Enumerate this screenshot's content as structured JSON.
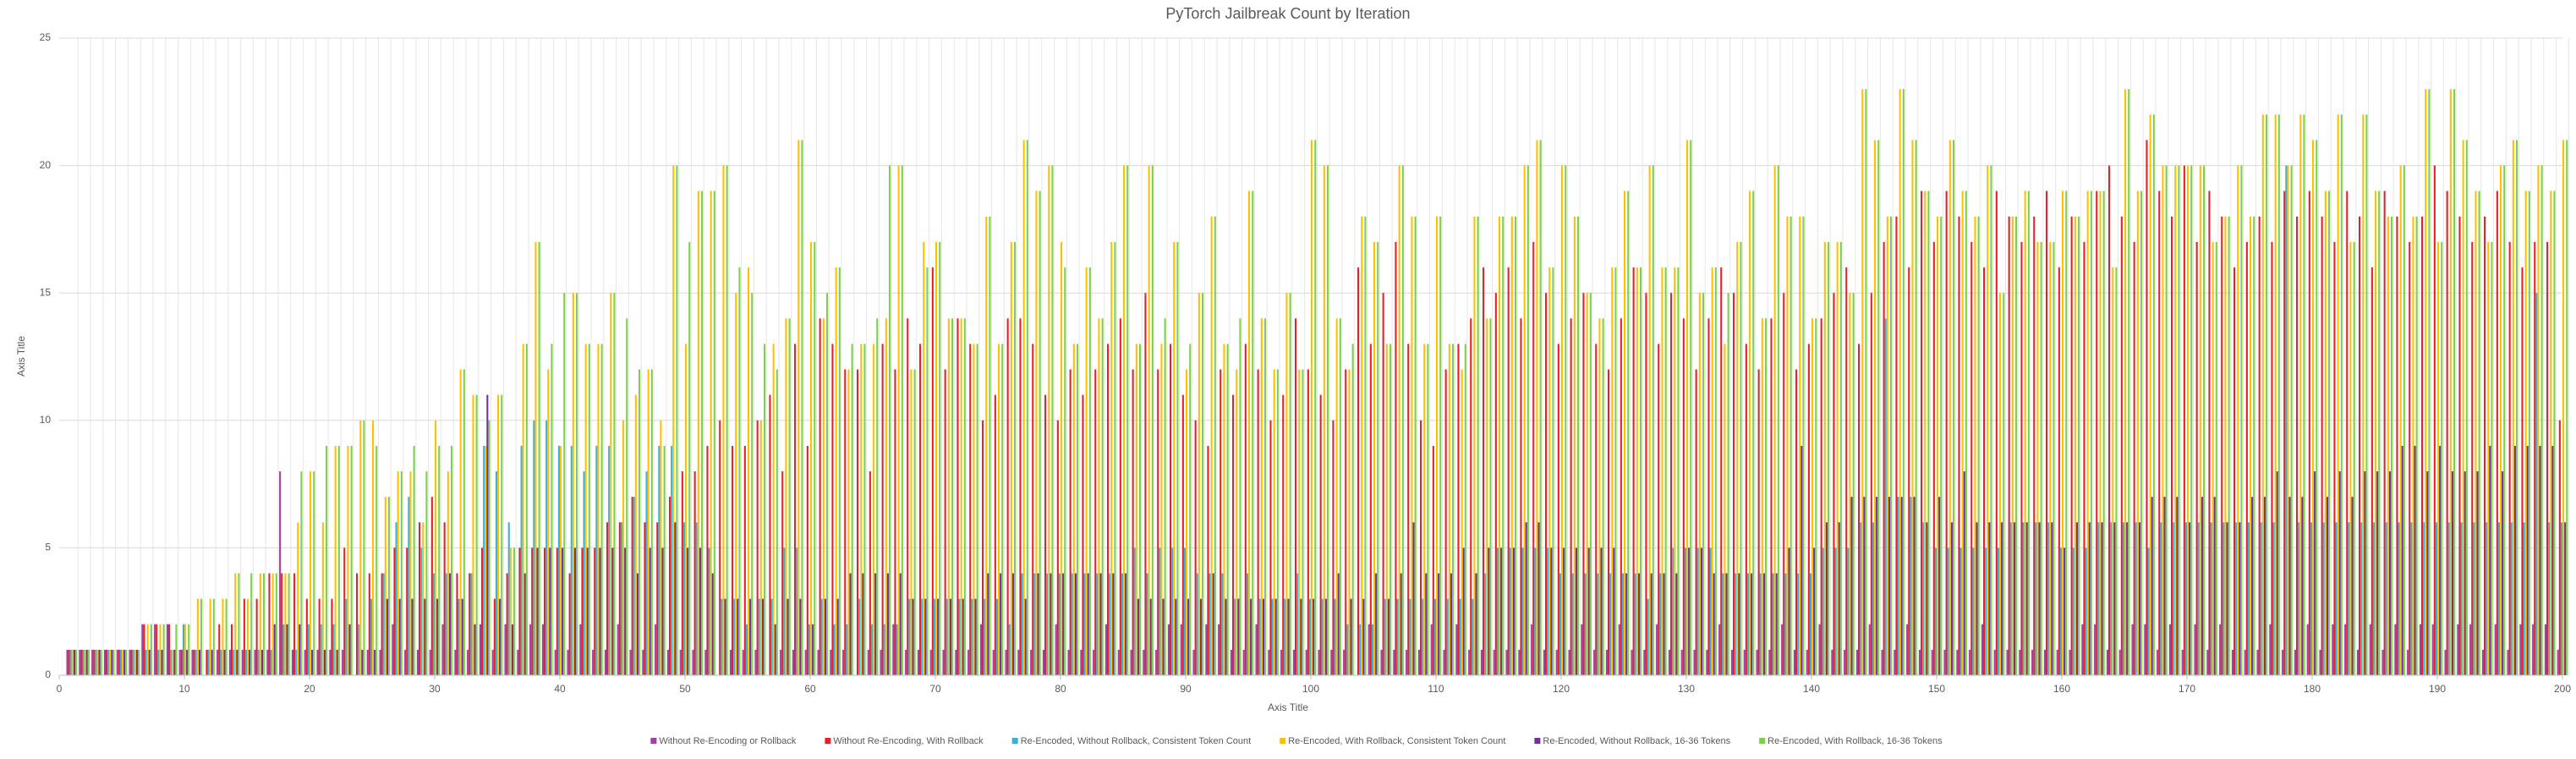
{
  "chart_data": {
    "type": "bar",
    "title": "PyTorch Jailbreak Count by Iteration",
    "x_label": "Axis Title",
    "y_label": "Axis Title",
    "x": [
      1,
      2,
      3,
      4,
      5,
      6,
      7,
      8,
      9,
      10,
      11,
      12,
      13,
      14,
      15,
      16,
      17,
      18,
      19,
      20,
      21,
      22,
      23,
      24,
      25,
      26,
      27,
      28,
      29,
      30,
      31,
      32,
      33,
      34,
      35,
      36,
      37,
      38,
      39,
      40,
      41,
      42,
      43,
      44,
      45,
      46,
      47,
      48,
      49,
      50,
      51,
      52,
      53,
      54,
      55,
      56,
      57,
      58,
      59,
      60,
      61,
      62,
      63,
      64,
      65,
      66,
      67,
      68,
      69,
      70,
      71,
      72,
      73,
      74,
      75,
      76,
      77,
      78,
      79,
      80,
      81,
      82,
      83,
      84,
      85,
      86,
      87,
      88,
      89,
      90,
      91,
      92,
      93,
      94,
      95,
      96,
      97,
      98,
      99,
      100,
      101,
      102,
      103,
      104,
      105,
      106,
      107,
      108,
      109,
      110,
      111,
      112,
      113,
      114,
      115,
      116,
      117,
      118,
      119,
      120,
      121,
      122,
      123,
      124,
      125,
      126,
      127,
      128,
      129,
      130,
      131,
      132,
      133,
      134,
      135,
      136,
      137,
      138,
      139,
      140,
      141,
      142,
      143,
      144,
      145,
      146,
      147,
      148,
      149,
      150,
      151,
      152,
      153,
      154,
      155,
      156,
      157,
      158,
      159,
      160,
      161,
      162,
      163,
      164,
      165,
      166,
      167,
      168,
      169,
      170,
      171,
      172,
      173,
      174,
      175,
      176,
      177,
      178,
      179,
      180,
      181,
      182,
      183,
      184,
      185,
      186,
      187,
      188,
      189,
      190,
      191,
      192,
      193,
      194,
      195,
      196,
      197,
      198,
      199,
      200
    ],
    "xlim": [
      0,
      200
    ],
    "xticks": [
      0,
      10,
      20,
      30,
      40,
      50,
      60,
      70,
      80,
      90,
      100,
      110,
      120,
      130,
      140,
      150,
      160,
      170,
      180,
      190,
      200
    ],
    "ylim": [
      0,
      25
    ],
    "yticks": [
      0,
      5,
      10,
      15,
      20,
      25
    ],
    "grid": true,
    "legend": "bottom",
    "series": [
      {
        "name": "Without Re-Encoding or Rollback",
        "color": "#a0409f",
        "values": [
          1,
          1,
          1,
          1,
          1,
          1,
          2,
          2,
          2,
          1,
          1,
          0,
          1,
          1,
          1,
          1,
          1,
          8,
          1,
          1,
          1,
          1,
          1,
          0,
          1,
          1,
          2,
          1,
          1,
          1,
          2,
          1,
          1,
          2,
          1,
          2,
          1,
          2,
          2,
          1,
          1,
          2,
          1,
          1,
          2,
          1,
          1,
          2,
          1,
          1,
          1,
          1,
          0,
          1,
          1,
          1,
          0,
          1,
          1,
          1,
          1,
          1,
          1,
          0,
          1,
          1,
          2,
          1,
          1,
          1,
          1,
          1,
          1,
          2,
          1,
          1,
          1,
          1,
          1,
          2,
          1,
          1,
          1,
          2,
          1,
          1,
          1,
          1,
          2,
          2,
          1,
          2,
          2,
          1,
          1,
          2,
          1,
          1,
          1,
          1,
          1,
          1,
          1,
          0,
          2,
          1,
          1,
          1,
          1,
          2,
          1,
          2,
          1,
          1,
          1,
          1,
          1,
          2,
          1,
          1,
          1,
          2,
          1,
          1,
          2,
          1,
          1,
          2,
          1,
          1,
          1,
          1,
          2,
          1,
          1,
          1,
          1,
          2,
          1,
          1,
          2,
          1,
          1,
          1,
          2,
          1,
          1,
          2,
          1,
          1,
          1,
          1,
          1,
          2,
          1,
          1,
          1,
          1,
          1,
          1,
          1,
          2,
          2,
          1,
          1,
          2,
          2,
          1,
          2,
          1,
          2,
          1,
          2,
          1,
          1,
          1,
          2,
          1,
          1,
          2,
          1,
          2,
          2,
          1,
          2,
          1,
          2,
          1,
          2,
          2,
          1,
          2,
          2,
          1,
          2,
          1,
          2,
          2,
          2,
          1
        ]
      },
      {
        "name": "Without Re-Encoding, With Rollback",
        "color": "#e8202a",
        "values": [
          1,
          1,
          1,
          1,
          1,
          1,
          2,
          2,
          2,
          1,
          1,
          1,
          2,
          2,
          3,
          3,
          4,
          4,
          4,
          3,
          3,
          3,
          5,
          4,
          4,
          4,
          5,
          5,
          6,
          7,
          6,
          4,
          4,
          5,
          3,
          4,
          5,
          5,
          5,
          5,
          4,
          5,
          5,
          6,
          6,
          7,
          6,
          6,
          7,
          8,
          8,
          9,
          10,
          9,
          9,
          10,
          11,
          8,
          13,
          9,
          14,
          13,
          12,
          12,
          8,
          13,
          12,
          14,
          13,
          16,
          12,
          14,
          13,
          10,
          11,
          14,
          14,
          13,
          11,
          10,
          12,
          11,
          12,
          13,
          14,
          12,
          15,
          12,
          13,
          11,
          10,
          9,
          12,
          11,
          13,
          12,
          10,
          11,
          14,
          12,
          11,
          10,
          12,
          16,
          13,
          15,
          17,
          13,
          10,
          9,
          12,
          13,
          14,
          16,
          15,
          16,
          14,
          17,
          15,
          13,
          14,
          15,
          13,
          12,
          14,
          16,
          15,
          13,
          15,
          14,
          12,
          14,
          16,
          15,
          13,
          12,
          14,
          15,
          12,
          13,
          14,
          15,
          16,
          13,
          15,
          17,
          18,
          16,
          19,
          17,
          19,
          18,
          17,
          16,
          19,
          18,
          17,
          18,
          19,
          16,
          18,
          17,
          19,
          20,
          18,
          17,
          21,
          19,
          18,
          20,
          17,
          19,
          18,
          16,
          17,
          18,
          17,
          19,
          18,
          19,
          18,
          17,
          19,
          18,
          16,
          19,
          18,
          17,
          18,
          20,
          19,
          18,
          17,
          18,
          19,
          17,
          16,
          17,
          17,
          10
        ]
      },
      {
        "name": "Re-Encoded, Without Rollback, Consistent Token Count",
        "color": "#3ab0e0",
        "values": [
          1,
          1,
          1,
          1,
          1,
          1,
          1,
          1,
          1,
          2,
          1,
          1,
          1,
          1,
          1,
          1,
          1,
          2,
          1,
          2,
          2,
          2,
          3,
          2,
          3,
          4,
          6,
          7,
          5,
          4,
          4,
          3,
          4,
          9,
          8,
          6,
          9,
          10,
          10,
          9,
          9,
          8,
          9,
          9,
          6,
          7,
          8,
          9,
          9,
          6,
          6,
          5,
          3,
          3,
          2,
          3,
          3,
          5,
          5,
          2,
          3,
          2,
          2,
          3,
          2,
          2,
          2,
          3,
          3,
          3,
          3,
          3,
          3,
          3,
          3,
          2,
          4,
          4,
          4,
          4,
          4,
          4,
          4,
          4,
          4,
          5,
          4,
          5,
          5,
          5,
          4,
          4,
          4,
          3,
          4,
          3,
          3,
          3,
          4,
          3,
          3,
          3,
          2,
          2,
          2,
          3,
          3,
          3,
          3,
          3,
          3,
          3,
          3,
          4,
          5,
          5,
          5,
          5,
          5,
          4,
          4,
          4,
          4,
          4,
          4,
          4,
          3,
          4,
          5,
          5,
          5,
          5,
          4,
          4,
          4,
          4,
          4,
          4,
          4,
          4,
          5,
          5,
          5,
          6,
          6,
          14,
          7,
          7,
          6,
          5,
          5,
          5,
          5,
          5,
          5,
          6,
          6,
          6,
          6,
          5,
          5,
          5,
          6,
          6,
          6,
          6,
          5,
          6,
          6,
          6,
          6,
          6,
          6,
          6,
          6,
          6,
          6,
          20,
          6,
          6,
          6,
          6,
          6,
          6,
          6,
          6,
          6,
          6,
          6,
          6,
          6,
          6,
          6,
          6,
          6,
          6,
          6,
          15,
          6,
          6
        ]
      },
      {
        "name": "Re-Encoded, With Rollback, Consistent Token Count",
        "color": "#ffc000",
        "values": [
          1,
          1,
          1,
          1,
          1,
          1,
          2,
          2,
          1,
          2,
          3,
          3,
          3,
          4,
          3,
          4,
          4,
          4,
          6,
          8,
          6,
          9,
          9,
          10,
          10,
          7,
          8,
          8,
          6,
          10,
          8,
          12,
          11,
          9,
          11,
          5,
          13,
          17,
          12,
          9,
          15,
          13,
          13,
          15,
          10,
          11,
          12,
          10,
          20,
          13,
          19,
          19,
          20,
          15,
          16,
          10,
          13,
          14,
          21,
          17,
          14,
          16,
          12,
          13,
          13,
          14,
          20,
          12,
          17,
          17,
          14,
          14,
          13,
          18,
          13,
          17,
          21,
          19,
          20,
          17,
          13,
          16,
          14,
          17,
          20,
          13,
          20,
          13,
          17,
          12,
          15,
          18,
          13,
          12,
          19,
          14,
          12,
          15,
          12,
          21,
          20,
          14,
          12,
          18,
          17,
          13,
          20,
          18,
          13,
          18,
          13,
          12,
          18,
          14,
          18,
          18,
          20,
          21,
          16,
          20,
          18,
          15,
          14,
          16,
          19,
          16,
          20,
          16,
          16,
          21,
          15,
          16,
          13,
          17,
          19,
          14,
          20,
          18,
          18,
          14,
          17,
          17,
          15,
          23,
          21,
          18,
          23,
          21,
          19,
          18,
          21,
          19,
          18,
          20,
          15,
          18,
          19,
          17,
          17,
          19,
          18,
          19,
          19,
          16,
          23,
          19,
          22,
          20,
          20,
          20,
          20,
          17,
          18,
          20,
          18,
          22,
          22,
          20,
          22,
          21,
          19,
          22,
          17,
          22,
          19,
          18,
          20,
          18,
          23,
          17,
          23,
          21,
          19,
          17,
          20,
          21,
          19,
          20,
          19,
          21
        ]
      },
      {
        "name": "Re-Encoded, Without Rollback, 16-36 Tokens",
        "color": "#7030a0",
        "values": [
          1,
          1,
          1,
          1,
          1,
          1,
          1,
          1,
          1,
          1,
          1,
          1,
          1,
          1,
          1,
          1,
          2,
          2,
          2,
          1,
          1,
          1,
          2,
          1,
          1,
          3,
          3,
          3,
          3,
          3,
          4,
          3,
          2,
          11,
          3,
          2,
          4,
          5,
          5,
          5,
          5,
          5,
          5,
          5,
          5,
          4,
          5,
          5,
          6,
          5,
          5,
          4,
          3,
          3,
          3,
          3,
          2,
          3,
          3,
          2,
          3,
          3,
          4,
          4,
          4,
          4,
          4,
          3,
          3,
          3,
          3,
          3,
          3,
          4,
          4,
          4,
          3,
          4,
          4,
          4,
          4,
          4,
          4,
          4,
          4,
          3,
          3,
          3,
          3,
          3,
          3,
          4,
          3,
          3,
          3,
          3,
          3,
          3,
          3,
          3,
          3,
          4,
          3,
          3,
          4,
          3,
          4,
          6,
          4,
          4,
          4,
          5,
          4,
          5,
          5,
          5,
          6,
          6,
          5,
          5,
          5,
          5,
          5,
          5,
          4,
          4,
          4,
          4,
          4,
          5,
          5,
          4,
          4,
          4,
          4,
          4,
          4,
          5,
          9,
          5,
          6,
          6,
          7,
          7,
          7,
          7,
          7,
          7,
          6,
          7,
          6,
          8,
          6,
          6,
          6,
          6,
          6,
          6,
          6,
          5,
          6,
          6,
          6,
          6,
          6,
          6,
          7,
          7,
          7,
          6,
          7,
          7,
          6,
          6,
          7,
          7,
          8,
          7,
          7,
          8,
          7,
          8,
          7,
          8,
          8,
          8,
          9,
          9,
          8,
          9,
          8,
          8,
          8,
          9,
          8,
          9,
          9,
          9,
          9,
          6
        ]
      },
      {
        "name": "Re-Encoded, With Rollback, 16-36 Tokens",
        "color": "#7ed04a",
        "values": [
          1,
          1,
          1,
          1,
          1,
          1,
          2,
          2,
          2,
          2,
          3,
          3,
          3,
          4,
          4,
          4,
          4,
          4,
          8,
          8,
          9,
          9,
          9,
          10,
          9,
          7,
          8,
          9,
          8,
          9,
          9,
          12,
          11,
          10,
          11,
          5,
          13,
          17,
          13,
          15,
          15,
          13,
          13,
          15,
          14,
          12,
          12,
          9,
          20,
          17,
          19,
          19,
          20,
          16,
          15,
          13,
          12,
          14,
          21,
          17,
          15,
          16,
          13,
          13,
          14,
          20,
          20,
          12,
          16,
          17,
          14,
          14,
          13,
          18,
          13,
          17,
          21,
          19,
          20,
          16,
          13,
          16,
          14,
          17,
          20,
          13,
          20,
          14,
          17,
          13,
          15,
          18,
          13,
          14,
          19,
          14,
          12,
          15,
          12,
          21,
          20,
          14,
          13,
          18,
          17,
          13,
          20,
          18,
          13,
          18,
          13,
          13,
          18,
          14,
          18,
          18,
          20,
          21,
          16,
          20,
          18,
          15,
          14,
          16,
          19,
          16,
          20,
          16,
          16,
          21,
          15,
          16,
          15,
          17,
          19,
          14,
          20,
          18,
          18,
          14,
          17,
          17,
          15,
          23,
          21,
          18,
          23,
          21,
          19,
          18,
          21,
          19,
          18,
          20,
          15,
          18,
          19,
          17,
          17,
          19,
          18,
          19,
          19,
          16,
          23,
          19,
          22,
          20,
          20,
          20,
          20,
          17,
          18,
          20,
          18,
          22,
          22,
          20,
          22,
          21,
          19,
          22,
          17,
          22,
          19,
          18,
          20,
          18,
          23,
          17,
          23,
          21,
          19,
          17,
          20,
          21,
          19,
          20,
          19,
          21
        ]
      }
    ]
  }
}
